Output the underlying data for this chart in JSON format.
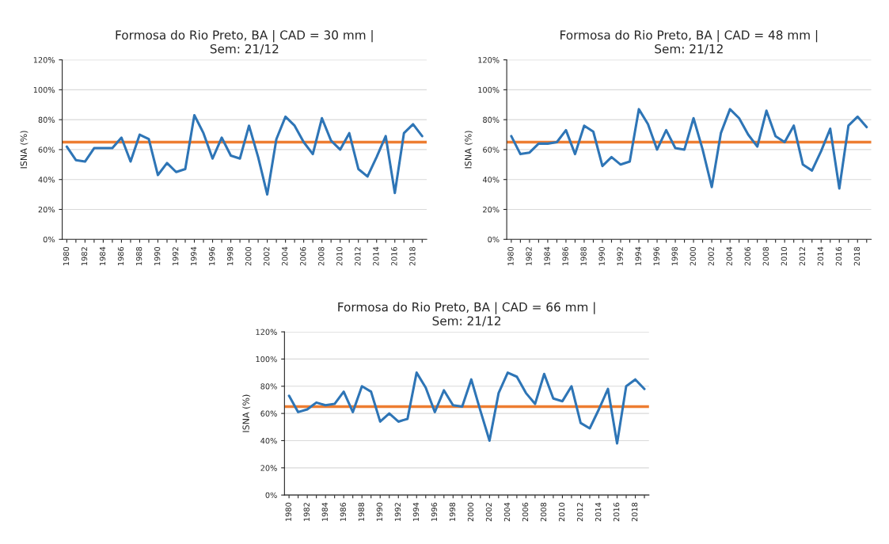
{
  "chart_data": [
    {
      "type": "line",
      "title": "Formosa do Rio Preto, BA | CAD = 30 mm |\nSem: 21/12",
      "ylabel": "ISNA (%)",
      "categories": [
        "1980",
        null,
        "1982",
        null,
        "1984",
        null,
        "1986",
        null,
        "1988",
        null,
        "1990",
        null,
        "1992",
        null,
        "1994",
        null,
        "1996",
        null,
        "1998",
        null,
        "2000",
        null,
        "2002",
        null,
        "2004",
        null,
        "2006",
        null,
        "2008",
        null,
        "2010",
        null,
        "2012",
        null,
        "2014",
        null,
        "2016",
        null,
        "2018",
        null
      ],
      "series": [
        {
          "color": "#2e75b6",
          "values": [
            62,
            53,
            52,
            61,
            61,
            61,
            68,
            52,
            70,
            67,
            43,
            51,
            45,
            47,
            83,
            71,
            54,
            68,
            56,
            54,
            76,
            55,
            30,
            67,
            82,
            76,
            65,
            57,
            81,
            66,
            60,
            71,
            47,
            42,
            55,
            69,
            31,
            71,
            77,
            69
          ]
        }
      ],
      "ref_lines": [
        {
          "axis": "y",
          "value": 65,
          "color": "#ed7d31"
        }
      ],
      "ylim": [
        0,
        120
      ],
      "yticks": [
        {
          "value": 0,
          "label": "0%"
        },
        {
          "value": 20,
          "label": "20%"
        },
        {
          "value": 40,
          "label": "40%"
        },
        {
          "value": 60,
          "label": "60%"
        },
        {
          "value": 80,
          "label": "80%"
        },
        {
          "value": 100,
          "label": "100%"
        },
        {
          "value": 120,
          "label": "120%"
        }
      ],
      "grid": "y",
      "marker": "none",
      "line_style": "solid"
    },
    {
      "type": "line",
      "title": "Formosa do Rio Preto, BA | CAD = 48 mm |\nSem: 21/12",
      "ylabel": "ISNA (%)",
      "categories": [
        "1980",
        null,
        "1982",
        null,
        "1984",
        null,
        "1986",
        null,
        "1988",
        null,
        "1990",
        null,
        "1992",
        null,
        "1994",
        null,
        "1996",
        null,
        "1998",
        null,
        "2000",
        null,
        "2002",
        null,
        "2004",
        null,
        "2006",
        null,
        "2008",
        null,
        "2010",
        null,
        "2012",
        null,
        "2014",
        null,
        "2016",
        null,
        "2018",
        null
      ],
      "series": [
        {
          "color": "#2e75b6",
          "values": [
            69,
            57,
            58,
            64,
            64,
            65,
            73,
            57,
            76,
            72,
            49,
            55,
            50,
            52,
            87,
            77,
            60,
            73,
            61,
            60,
            81,
            60,
            35,
            71,
            87,
            81,
            70,
            62,
            86,
            69,
            65,
            76,
            50,
            46,
            59,
            74,
            34,
            76,
            82,
            75
          ]
        }
      ],
      "ref_lines": [
        {
          "axis": "y",
          "value": 65,
          "color": "#ed7d31"
        }
      ],
      "ylim": [
        0,
        120
      ],
      "yticks": [
        {
          "value": 0,
          "label": "0%"
        },
        {
          "value": 20,
          "label": "20%"
        },
        {
          "value": 40,
          "label": "40%"
        },
        {
          "value": 60,
          "label": "60%"
        },
        {
          "value": 80,
          "label": "80%"
        },
        {
          "value": 100,
          "label": "100%"
        },
        {
          "value": 120,
          "label": "120%"
        }
      ],
      "grid": "y",
      "marker": "none",
      "line_style": "solid"
    },
    {
      "type": "line",
      "title": "Formosa do Rio Preto, BA | CAD = 66 mm |\nSem: 21/12",
      "ylabel": "ISNA (%)",
      "categories": [
        "1980",
        null,
        "1982",
        null,
        "1984",
        null,
        "1986",
        null,
        "1988",
        null,
        "1990",
        null,
        "1992",
        null,
        "1994",
        null,
        "1996",
        null,
        "1998",
        null,
        "2000",
        null,
        "2002",
        null,
        "2004",
        null,
        "2006",
        null,
        "2008",
        null,
        "2010",
        null,
        "2012",
        null,
        "2014",
        null,
        "2016",
        null,
        "2018",
        null
      ],
      "series": [
        {
          "color": "#2e75b6",
          "values": [
            73,
            61,
            63,
            68,
            66,
            67,
            76,
            61,
            80,
            76,
            54,
            60,
            54,
            56,
            90,
            79,
            61,
            77,
            66,
            65,
            85,
            62,
            40,
            75,
            90,
            87,
            75,
            67,
            89,
            71,
            69,
            80,
            53,
            49,
            63,
            78,
            38,
            80,
            85,
            78
          ]
        }
      ],
      "ref_lines": [
        {
          "axis": "y",
          "value": 65,
          "color": "#ed7d31"
        }
      ],
      "ylim": [
        0,
        120
      ],
      "yticks": [
        {
          "value": 0,
          "label": "0%"
        },
        {
          "value": 20,
          "label": "20%"
        },
        {
          "value": 40,
          "label": "40%"
        },
        {
          "value": 60,
          "label": "60%"
        },
        {
          "value": 80,
          "label": "80%"
        },
        {
          "value": 100,
          "label": "100%"
        },
        {
          "value": 120,
          "label": "120%"
        }
      ],
      "grid": "y",
      "marker": "none",
      "line_style": "solid"
    }
  ]
}
